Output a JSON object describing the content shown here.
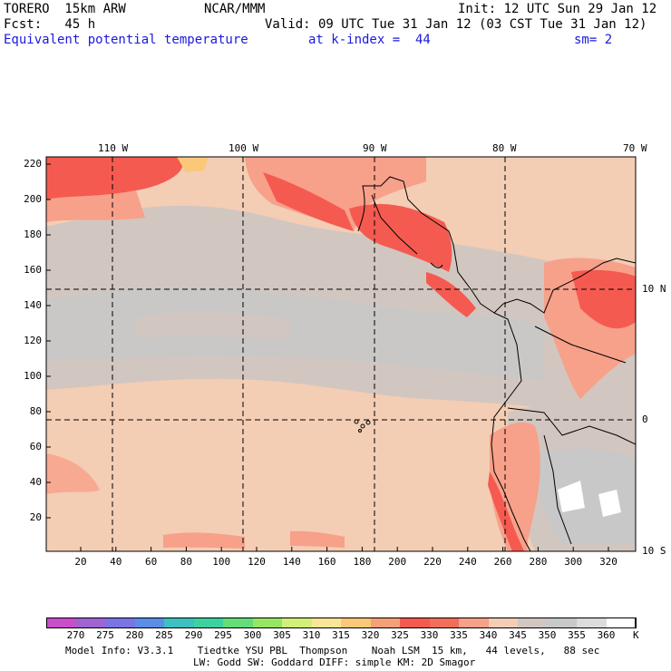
{
  "header": {
    "model": "TORERO  15km ARW",
    "center": "NCAR/MMM",
    "init": "Init: 12 UTC Sun 29 Jan 12",
    "fcst": "Fcst:   45 h",
    "valid": "Valid: 09 UTC Tue 31 Jan 12 (03 CST Tue 31 Jan 12)",
    "field": "Equivalent potential temperature",
    "level": "at k-index =  44",
    "smooth": "sm= 2"
  },
  "map": {
    "lon_labels": [
      "110 W",
      "100 W",
      "90 W",
      "80 W",
      "70 W"
    ],
    "lat_labels": [
      "10 N",
      "0",
      "10 S"
    ],
    "y_ticks": [
      "220",
      "200",
      "180",
      "160",
      "140",
      "120",
      "100",
      "80",
      "60",
      "40",
      "20"
    ],
    "x_ticks": [
      "20",
      "40",
      "60",
      "80",
      "100",
      "120",
      "140",
      "160",
      "180",
      "200",
      "220",
      "240",
      "260",
      "280",
      "300",
      "320"
    ]
  },
  "colorbar": {
    "labels": [
      "270",
      "275",
      "280",
      "285",
      "290",
      "295",
      "300",
      "305",
      "310",
      "315",
      "320",
      "325",
      "330",
      "335",
      "340",
      "345",
      "350",
      "355",
      "360"
    ],
    "unit": "K",
    "colors": [
      "#c84fc8",
      "#a064d2",
      "#7a74e6",
      "#5a8ee6",
      "#3cc0c0",
      "#3cd2a0",
      "#64dc78",
      "#96e664",
      "#d2f078",
      "#fae696",
      "#fac878",
      "#f5a078",
      "#f55a50",
      "#f06e5a",
      "#f7a08a",
      "#f3cdb4",
      "#d2c6c0",
      "#c8c8c8",
      "#dcdcdc",
      "#ffffff"
    ]
  },
  "footer": {
    "line1": "Model Info: V3.3.1    Tiedtke YSU PBL  Thompson    Noah LSM  15 km,   44 levels,   88 sec",
    "line2": "LW: Godd SW: Goddard DIFF: simple KM: 2D Smagor"
  },
  "colors": {
    "background_field": "#f3cdb4",
    "cool_band": "#d2c6c0",
    "coolest": "#c8c8c8",
    "warm": "#f7a08a",
    "hot": "#f55a50",
    "label_blue": "#1a1adc"
  }
}
